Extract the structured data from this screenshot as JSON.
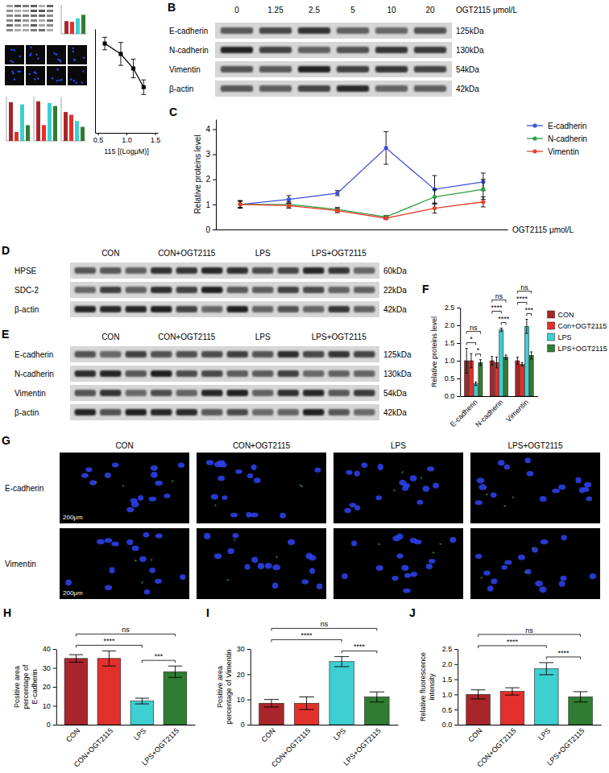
{
  "chart_data": [
    {
      "type": "line",
      "x": [
        0.62,
        0.9,
        1.12,
        1.3
      ],
      "xlim": [
        0.45,
        1.55
      ],
      "xticks": [
        0.5,
        {
          "value": 1,
          "label": "1.0"
        },
        1.5
      ],
      "ylim": [
        0,
        100
      ],
      "tick_labels": "x",
      "xlabel": "115 [(LogμM)]",
      "series": [
        {
          "color": "#000000",
          "marker": "square",
          "values": [
            86,
            76,
            62,
            44
          ],
          "errors": [
            6,
            11,
            9,
            7
          ]
        }
      ]
    },
    {
      "panel": "C",
      "type": "line",
      "categories": [
        null,
        null,
        null,
        null,
        null,
        null
      ],
      "xlabel": "OGT2115 μmol/L",
      "ylabel": "Relative proteins level",
      "ylim": [
        0,
        4.4
      ],
      "yticks": [
        0,
        1,
        2,
        3,
        4
      ],
      "tick_labels": "y",
      "legend": "right",
      "series": [
        {
          "name": "E-cadherin",
          "color": "#3F4FD9",
          "marker": "circle",
          "values": [
            1.0,
            1.2,
            1.45,
            3.25,
            1.6,
            1.9
          ],
          "errors": [
            0.12,
            0.15,
            0.1,
            0.65,
            0.55,
            0.35
          ]
        },
        {
          "name": "N-cadherin",
          "color": "#2E9E44",
          "marker": "circle",
          "values": [
            1.0,
            1.0,
            0.8,
            0.5,
            1.3,
            1.6
          ],
          "errors": [
            0.15,
            0.1,
            0.08,
            0.06,
            0.3,
            0.4
          ]
        },
        {
          "name": "Vimentin",
          "color": "#E8402A",
          "marker": "circle",
          "values": [
            1.0,
            0.95,
            0.75,
            0.45,
            0.85,
            1.1
          ],
          "errors": [
            0.15,
            0.1,
            0.08,
            0.05,
            0.2,
            0.2
          ]
        }
      ]
    },
    {
      "panel": "F",
      "type": "bar",
      "categories": [
        "E-cadherin",
        "N-cadherin",
        "Vimentin"
      ],
      "ylabel": "Relative proteins level",
      "ylim": [
        0,
        2.5
      ],
      "yticks": [
        {
          "value": 0,
          "label": "0.0"
        },
        0.5,
        {
          "value": 1,
          "label": "1.0"
        },
        1.5,
        {
          "value": 2,
          "label": "2.0"
        },
        2.5
      ],
      "legend": "right",
      "series": [
        {
          "name": "CON",
          "color": "#A8262B",
          "values": [
            1.0,
            1.0,
            1.0
          ],
          "errors": [
            0.35,
            0.12,
            0.1
          ]
        },
        {
          "name": "Con+OGT2115",
          "color": "#E2312C",
          "values": [
            1.0,
            0.95,
            0.9
          ],
          "errors": [
            0.2,
            0.15,
            0.05
          ]
        },
        {
          "name": "LPS",
          "color": "#3ECFD2",
          "values": [
            0.35,
            1.87,
            1.97
          ],
          "errors": [
            0.05,
            0.05,
            0.2
          ]
        },
        {
          "name": "LPS+OGT2115",
          "color": "#2F7D32",
          "values": [
            0.95,
            1.1,
            1.15
          ],
          "errors": [
            0.08,
            0.06,
            0.1
          ]
        }
      ],
      "annotations": [
        {
          "text": "*",
          "category": "E-cadherin",
          "between": [
            "CON",
            "LPS"
          ]
        },
        {
          "text": "ns",
          "category": "E-cadherin",
          "between": [
            "CON",
            "LPS+OGT2115"
          ]
        },
        {
          "text": "*",
          "category": "E-cadherin",
          "between": [
            "LPS",
            "LPS+OGT2115"
          ]
        },
        {
          "text": "****",
          "category": "N-cadherin",
          "between": [
            "CON",
            "LPS"
          ]
        },
        {
          "text": "ns",
          "category": "N-cadherin",
          "between": [
            "CON",
            "LPS+OGT2115"
          ]
        },
        {
          "text": "****",
          "category": "N-cadherin",
          "between": [
            "LPS",
            "LPS+OGT2115"
          ]
        },
        {
          "text": "****",
          "category": "Vimentin",
          "between": [
            "CON",
            "LPS"
          ]
        },
        {
          "text": "ns",
          "category": "Vimentin",
          "between": [
            "CON",
            "LPS+OGT2115"
          ]
        },
        {
          "text": "***",
          "category": "Vimentin",
          "between": [
            "LPS",
            "LPS+OGT2115"
          ]
        }
      ]
    },
    {
      "panel": "H",
      "type": "bar",
      "categories": [
        "CON",
        "CON+OGT2115",
        "LPS",
        "LPS+OGT2115"
      ],
      "colors": [
        "#A8262B",
        "#E2312C",
        "#3ECFD2",
        "#2F7D32"
      ],
      "values": [
        35,
        35,
        12.5,
        28
      ],
      "errors": [
        2,
        4,
        1.5,
        3
      ],
      "ylabel": "Positive area percentage of E-cadherin",
      "ylim": [
        0,
        40
      ],
      "yticks": [
        0,
        10,
        20,
        30,
        40
      ],
      "annotations": [
        {
          "text": "****",
          "between": [
            "CON",
            "LPS"
          ]
        },
        {
          "text": "ns",
          "between": [
            "CON",
            "LPS+OGT2115"
          ]
        },
        {
          "text": "***",
          "between": [
            "LPS",
            "LPS+OGT2115"
          ]
        }
      ]
    },
    {
      "panel": "I",
      "type": "bar",
      "categories": [
        "CON",
        "CON+OGT2115",
        "LPS",
        "LPS+OGT2115"
      ],
      "colors": [
        "#A8262B",
        "#E2312C",
        "#3ECFD2",
        "#2F7D32"
      ],
      "values": [
        8.5,
        8.5,
        25,
        11
      ],
      "errors": [
        1.5,
        2.5,
        2,
        2
      ],
      "ylabel": "Positive area percentage of Vimentin",
      "ylim": [
        0,
        30
      ],
      "yticks": [
        0,
        10,
        20,
        30
      ],
      "annotations": [
        {
          "text": "****",
          "between": [
            "CON",
            "LPS"
          ]
        },
        {
          "text": "ns",
          "between": [
            "CON",
            "LPS+OGT2115"
          ]
        },
        {
          "text": "****",
          "between": [
            "LPS",
            "LPS+OGT2115"
          ]
        }
      ]
    },
    {
      "panel": "J",
      "type": "bar",
      "categories": [
        "CON",
        "CON+OGT2115",
        "LPS",
        "LPS+OGT2115"
      ],
      "colors": [
        "#A8262B",
        "#E2312C",
        "#3ECFD2",
        "#2F7D32"
      ],
      "values": [
        1.0,
        1.1,
        1.85,
        0.92
      ],
      "errors": [
        0.15,
        0.12,
        0.2,
        0.17
      ],
      "ylabel": "Relative fluorescence intensity",
      "ylim": [
        0,
        2.5
      ],
      "yticks": [
        {
          "value": 0,
          "label": "0.0"
        },
        0.5,
        {
          "value": 1,
          "label": "1.0"
        },
        1.5,
        {
          "value": 2,
          "label": "2.0"
        },
        2.5
      ],
      "annotations": [
        {
          "text": "****",
          "between": [
            "CON",
            "LPS"
          ]
        },
        {
          "text": "ns",
          "between": [
            "CON",
            "LPS+OGT2115"
          ]
        },
        {
          "text": "****",
          "between": [
            "LPS",
            "LPS+OGT2115"
          ]
        }
      ]
    }
  ],
  "blots": [
    {
      "panel": "B",
      "lanes": [
        "0",
        "1.25",
        "2.5",
        "5",
        "10",
        "20"
      ],
      "lanes_title": "OGT2115 μmol/L",
      "rows": [
        {
          "name": "E-cadherin",
          "size": "125kDa"
        },
        {
          "name": "N-cadherin",
          "size": "130kDa"
        },
        {
          "name": "Vimentin",
          "size": "54kDa"
        },
        {
          "name": "β-actin",
          "size": "42kDa"
        }
      ]
    },
    {
      "panel": "D",
      "groups": [
        "CON",
        "CON+OGT2115",
        "LPS",
        "LPS+OGT2115"
      ],
      "lanes_per_group": 3,
      "rows": [
        {
          "name": "HPSE",
          "size": "60kDa"
        },
        {
          "name": "SDC-2",
          "size": "22kDa"
        },
        {
          "name": "β-actin",
          "size": "42kDa"
        }
      ]
    },
    {
      "panel": "E",
      "groups": [
        "CON",
        "CON+OGT2115",
        "LPS",
        "LPS+OGT2115"
      ],
      "lanes_per_group": 3,
      "rows": [
        {
          "name": "E-cadherin",
          "size": "125kDa"
        },
        {
          "name": "N-cadherin",
          "size": "130kDa"
        },
        {
          "name": "Vimentin",
          "size": "54kDa"
        },
        {
          "name": "β-actin",
          "size": "42kDa"
        }
      ]
    }
  ],
  "images": {
    "panel": "G",
    "columns": [
      "CON",
      "CON+OGT2115",
      "LPS",
      "LPS+OGT2115"
    ],
    "rows": [
      "E-cadherin",
      "Vimentin"
    ],
    "scale_bar": "200μm"
  }
}
